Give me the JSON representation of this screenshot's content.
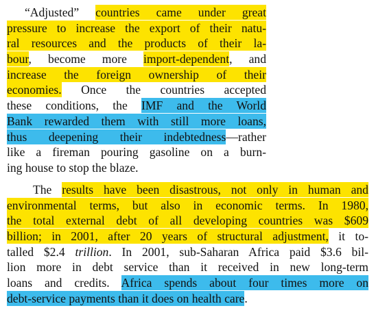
{
  "paragraphs": [
    {
      "lines": [
        {
          "segments": [
            {
              "text": "“Adjusted” "
            },
            {
              "text": "countries came under great",
              "highlight": "#fde300"
            }
          ]
        },
        {
          "segments": [
            {
              "text": "pressure to increase the export of their natu-",
              "highlight": "#fde300"
            }
          ]
        },
        {
          "segments": [
            {
              "text": "ral resources and the products of their la-",
              "highlight": "#fde300"
            }
          ]
        },
        {
          "segments": [
            {
              "text": "bour",
              "highlight": "#fde300"
            },
            {
              "text": ", become more "
            },
            {
              "text": "import-dependent",
              "highlight": "#fde300"
            },
            {
              "text": ", and"
            }
          ]
        },
        {
          "segments": [
            {
              "text": "increase the foreign ownership of their",
              "highlight": "#fde300"
            }
          ]
        },
        {
          "segments": [
            {
              "text": "economies.",
              "highlight": "#fde300"
            },
            {
              "text": " Once the countries accepted"
            }
          ]
        },
        {
          "segments": [
            {
              "text": "these conditions, the "
            },
            {
              "text": "IMF and the World",
              "highlight": "#3dbbec"
            }
          ]
        },
        {
          "segments": [
            {
              "text": "Bank rewarded them with still more loans,",
              "highlight": "#3dbbec"
            }
          ]
        },
        {
          "segments": [
            {
              "text": "thus deepening their indebtedness",
              "highlight": "#3dbbec"
            },
            {
              "text": "—rather"
            }
          ]
        },
        {
          "segments": [
            {
              "text": "like a fireman pouring gasoline on a burn-"
            }
          ]
        },
        {
          "segments": [
            {
              "text": "ing house to stop the blaze."
            }
          ]
        }
      ]
    },
    {
      "lines": [
        {
          "segments": [
            {
              "text": "The "
            },
            {
              "text": "results have been disastrous, not only in human and",
              "highlight": "#fde300"
            }
          ]
        },
        {
          "segments": [
            {
              "text": "environmental terms, but also in economic terms. In 1980,",
              "highlight": "#fde300"
            }
          ]
        },
        {
          "segments": [
            {
              "text": "the total external debt of all developing countries was $609",
              "highlight": "#fde300"
            }
          ]
        },
        {
          "segments": [
            {
              "text": "billion; in 2001, after 20 years of structural adjustment,",
              "highlight": "#fde300"
            },
            {
              "text": " it to-"
            }
          ]
        },
        {
          "segments": [
            {
              "text": "talled $2.4 "
            },
            {
              "text": "trillion",
              "style": "italic"
            },
            {
              "text": ". In 2001, sub-Saharan Africa paid $3.6 bil-"
            }
          ]
        },
        {
          "segments": [
            {
              "text": "lion more in debt service than it received in new long-term"
            }
          ]
        },
        {
          "segments": [
            {
              "text": "loans and credits. "
            },
            {
              "text": "Africa spends about four times more on",
              "highlight": "#3dbbec"
            }
          ]
        },
        {
          "segments": [
            {
              "text": "debt-service payments than it does on health care",
              "highlight": "#3dbbec"
            },
            {
              "text": "."
            }
          ]
        }
      ]
    }
  ]
}
